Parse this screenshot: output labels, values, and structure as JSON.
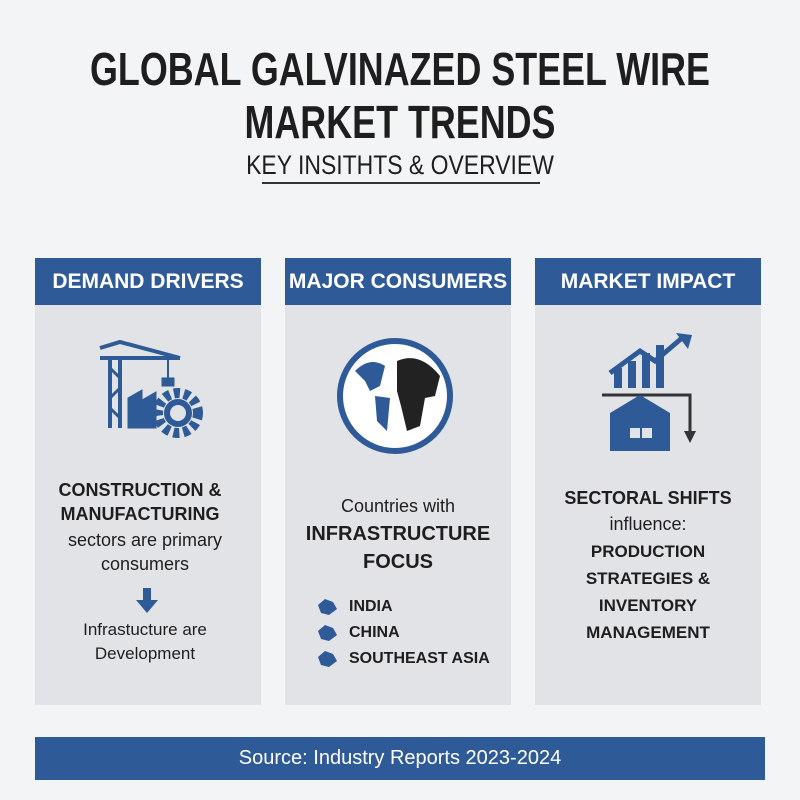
{
  "header": {
    "title_lines": [
      "GLOBAL GALVINAZED STEEL WIRE",
      "MARKET TRENDS"
    ],
    "subtitle": "KEY INSITHTS & OVERVIEW"
  },
  "panels": [
    {
      "heading": "DEMAND DRIVERS",
      "emphasis": "CONSTRUCTION & MANUFACTURING",
      "text": "sectors are primary consumers",
      "result": "Infrastucture are Development"
    },
    {
      "heading": "MAJOR CONSUMERS",
      "intro": "Countries with",
      "emphasis": "INFRASTRUCTURE FOCUS",
      "regions": [
        "INDIA",
        "CHINA",
        "SOUTHEAST ASIA"
      ]
    },
    {
      "heading": "MARKET IMPACT",
      "emphasis": "SECTORAL SHIFTS",
      "text": "influence:",
      "result": "PRODUCTION STRATEGIES & INVENTORY MANAGEMENT"
    }
  ],
  "footer": {
    "source": "Source: Industry Reports 2023-2024"
  }
}
